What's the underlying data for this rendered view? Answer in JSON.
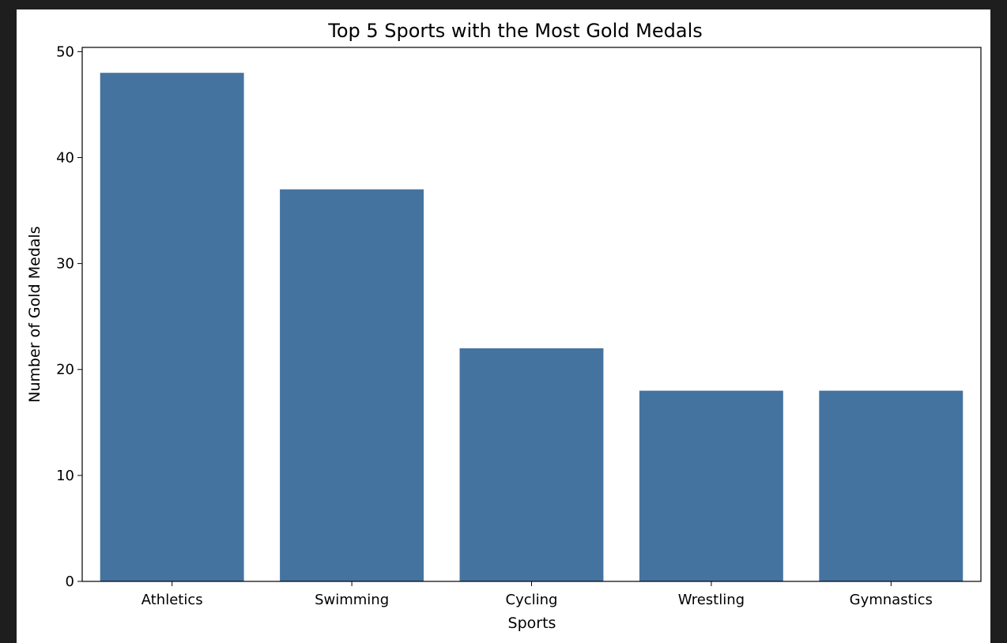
{
  "theme": {
    "outer_background": "#1e1e1e",
    "figure_background": "#ffffff",
    "bar_color": "#4573a0",
    "axis_color": "#000000"
  },
  "chart_data": {
    "type": "bar",
    "title": "Top 5 Sports with the Most Gold Medals",
    "xlabel": "Sports",
    "ylabel": "Number of Gold Medals",
    "categories": [
      "Athletics",
      "Swimming",
      "Cycling",
      "Wrestling",
      "Gymnastics"
    ],
    "values": [
      48,
      37,
      22,
      18,
      18
    ],
    "ylim": [
      0,
      50.4
    ],
    "yticks": [
      0,
      10,
      20,
      30,
      40,
      50
    ],
    "grid": false,
    "legend": "none"
  }
}
